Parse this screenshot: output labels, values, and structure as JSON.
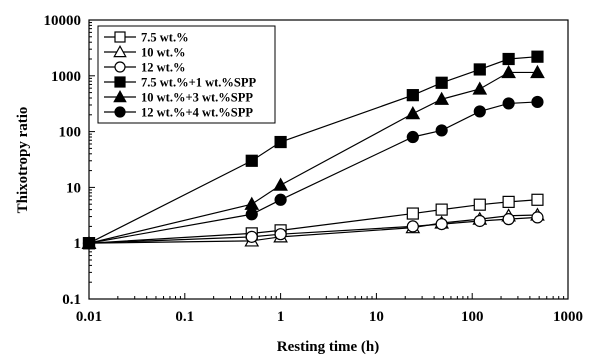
{
  "chart_data": {
    "type": "line",
    "xlabel": "Resting time (h)",
    "ylabel": "Thixotropy ratio",
    "xscale": "log",
    "yscale": "log",
    "xlim": [
      0.01,
      1000
    ],
    "ylim": [
      0.1,
      10000
    ],
    "x_ticks": [
      "0.01",
      "0.1",
      "1",
      "10",
      "100",
      "1000"
    ],
    "y_ticks": [
      "0.1",
      "1",
      "10",
      "100",
      "1000",
      "10000"
    ],
    "grid": false,
    "legend_position": "top-left",
    "series": [
      {
        "name": "7.5 wt.%",
        "marker": "square-open",
        "x": [
          0.01,
          0.5,
          1,
          24,
          48,
          120,
          240,
          480
        ],
        "y": [
          1,
          1.5,
          1.7,
          3.4,
          4.0,
          4.9,
          5.5,
          6.0
        ]
      },
      {
        "name": "10 wt.%",
        "marker": "triangle-open",
        "x": [
          0.01,
          0.5,
          1,
          24,
          48,
          120,
          240,
          480
        ],
        "y": [
          1,
          1.1,
          1.3,
          1.9,
          2.3,
          2.7,
          3.1,
          3.2
        ]
      },
      {
        "name": "12 wt.%",
        "marker": "circle-open",
        "x": [
          0.01,
          0.5,
          1,
          24,
          48,
          120,
          240,
          480
        ],
        "y": [
          1,
          1.3,
          1.45,
          2.0,
          2.2,
          2.5,
          2.7,
          2.9
        ]
      },
      {
        "name": "7.5 wt.%+1 wt.%SPP",
        "marker": "square-filled",
        "x": [
          0.01,
          0.5,
          1,
          24,
          48,
          120,
          240,
          480
        ],
        "y": [
          1,
          30,
          65,
          450,
          750,
          1300,
          2000,
          2200
        ]
      },
      {
        "name": "10 wt.%+3 wt.%SPP",
        "marker": "triangle-filled",
        "x": [
          0.01,
          0.5,
          1,
          24,
          48,
          120,
          240,
          480
        ],
        "y": [
          1,
          5,
          11,
          210,
          380,
          580,
          1150,
          1150
        ]
      },
      {
        "name": "12 wt.%+4 wt.%SPP",
        "marker": "circle-filled",
        "x": [
          0.01,
          0.5,
          1,
          24,
          48,
          120,
          240,
          480
        ],
        "y": [
          1,
          3.3,
          6,
          80,
          105,
          230,
          320,
          340
        ]
      }
    ]
  }
}
